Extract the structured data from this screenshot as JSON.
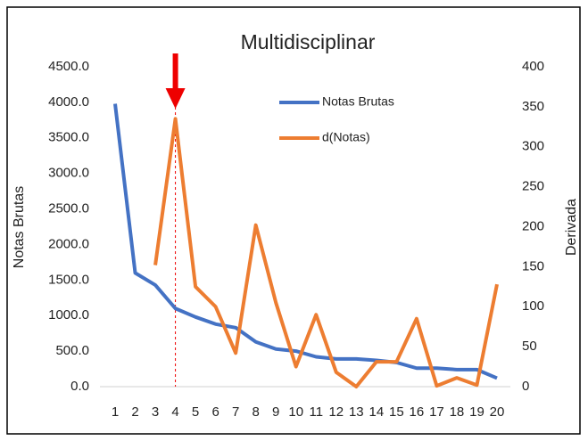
{
  "chart_data": {
    "type": "line",
    "title": "Multidisciplinar",
    "ylabel": "Notas Brutas",
    "y2label": "Derivada",
    "categories": [
      "1",
      "2",
      "3",
      "4",
      "5",
      "6",
      "7",
      "8",
      "9",
      "10",
      "11",
      "12",
      "13",
      "14",
      "15",
      "16",
      "17",
      "18",
      "19",
      "20"
    ],
    "series": [
      {
        "name": "Notas Brutas",
        "color": "#4472c4",
        "values": [
          3980,
          1600,
          1430,
          1100,
          980,
          880,
          830,
          630,
          530,
          500,
          420,
          390,
          390,
          370,
          340,
          260,
          260,
          240,
          240,
          120
        ]
      },
      {
        "name": "d(Notas)",
        "color": "#ed7d31",
        "axis": "y2",
        "values": [
          null,
          null,
          152,
          335,
          125,
          100,
          42,
          202,
          105,
          25,
          90,
          18,
          0,
          31,
          31,
          85,
          1,
          11,
          2,
          128
        ]
      }
    ],
    "ylim": [
      0,
      4500
    ],
    "yticks": [
      {
        "value": 0,
        "label": "0.0"
      },
      {
        "value": 500,
        "label": "500.0"
      },
      {
        "value": 1000,
        "label": "1000.0"
      },
      {
        "value": 1500,
        "label": "1500.0"
      },
      {
        "value": 2000,
        "label": "2000.0"
      },
      {
        "value": 2500,
        "label": "2500.0"
      },
      {
        "value": 3000,
        "label": "3000.0"
      },
      {
        "value": 3500,
        "label": "3500.0"
      },
      {
        "value": 4000,
        "label": "4000.0"
      },
      {
        "value": 4500,
        "label": "4500.0"
      }
    ],
    "y2lim": [
      0,
      400
    ],
    "y2ticks": [
      0,
      50,
      100,
      150,
      200,
      250,
      300,
      350,
      400
    ],
    "grid": false,
    "legend": "top"
  }
}
